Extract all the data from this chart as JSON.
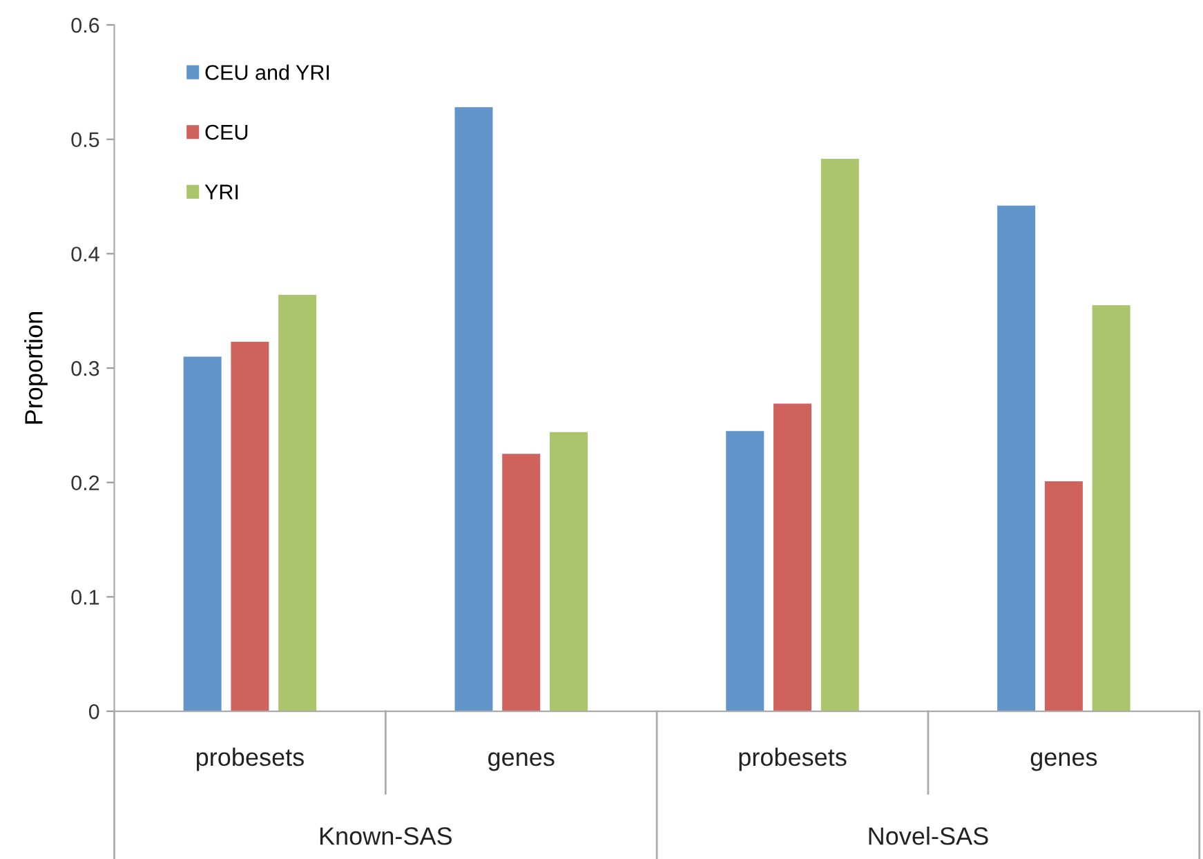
{
  "chart_data": {
    "type": "bar",
    "ylabel": "Proportion",
    "categories": [
      "probesets",
      "genes",
      "probesets",
      "genes"
    ],
    "series": [
      {
        "name": "CEU and YRI",
        "color": "#6194c8",
        "values": [
          0.31,
          0.528,
          0.245,
          0.442
        ]
      },
      {
        "name": "CEU",
        "color": "#cf625c",
        "values": [
          0.323,
          0.225,
          0.269,
          0.201
        ]
      },
      {
        "name": "YRI",
        "color": "#aac56c",
        "values": [
          0.364,
          0.244,
          0.483,
          0.355
        ]
      }
    ],
    "annotations": [
      "Known-SAS",
      "Novel-SAS"
    ],
    "ylim": [
      0,
      0.6
    ],
    "yticks": [
      {
        "value": 0,
        "label": "0"
      },
      0.1,
      0.2,
      0.3,
      0.4,
      0.5,
      0.6
    ],
    "grid": false,
    "legend": "top left"
  }
}
